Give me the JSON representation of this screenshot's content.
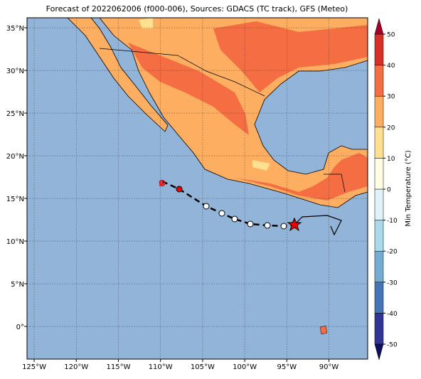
{
  "title": "Forecast of 2022062006 (f000-006), Sources: GDACS (TC track), GFS (Meteo)",
  "map": {
    "xlim": [
      -125.85,
      -85.4
    ],
    "ylim": [
      -3.83,
      36.17
    ],
    "xticks": [
      {
        "value": -125,
        "label": "125°W"
      },
      {
        "value": -120,
        "label": "120°W"
      },
      {
        "value": -115,
        "label": "115°W"
      },
      {
        "value": -110,
        "label": "110°W"
      },
      {
        "value": -105,
        "label": "105°W"
      },
      {
        "value": -100,
        "label": "100°W"
      },
      {
        "value": -95,
        "label": "95°W"
      },
      {
        "value": -90,
        "label": "90°W"
      }
    ],
    "yticks": [
      {
        "value": 0,
        "label": "0°"
      },
      {
        "value": 5,
        "label": "5°N"
      },
      {
        "value": 10,
        "label": "10°N"
      },
      {
        "value": 15,
        "label": "15°N"
      },
      {
        "value": 20,
        "label": "20°N"
      },
      {
        "value": 25,
        "label": "25°N"
      },
      {
        "value": 30,
        "label": "30°N"
      },
      {
        "value": 35,
        "label": "35°N"
      }
    ],
    "grid": true
  },
  "colorbar": {
    "label": "Min Temperature (°C)",
    "lim": [
      -50,
      50
    ],
    "ticks": [
      -50,
      -40,
      -30,
      -20,
      -10,
      0,
      10,
      20,
      30,
      40,
      50
    ],
    "colors": [
      "#313695",
      "#4575b4",
      "#74add1",
      "#abd9e9",
      "#e0f3f8",
      "#fffde2",
      "#fee090",
      "#fdae61",
      "#f46d43",
      "#d73027"
    ],
    "under_color": "#101060",
    "over_color": "#a50026"
  }
}
